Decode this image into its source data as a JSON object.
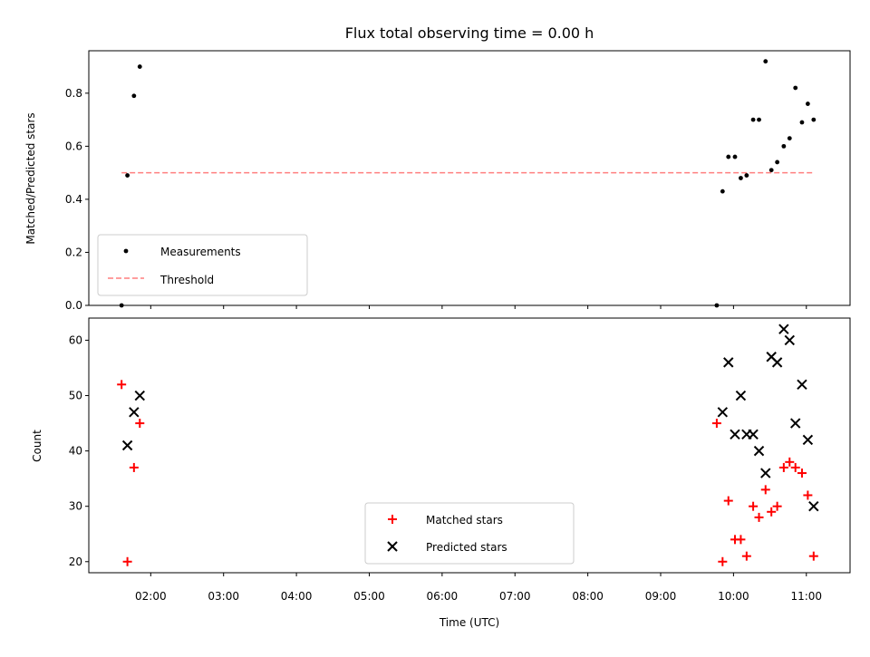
{
  "chart_data": [
    {
      "type": "scatter",
      "title": "Flux total observing time = 0.00 h",
      "xlabel": "",
      "ylabel": "Matched/Predicted stars",
      "ylim": [
        0,
        0.96
      ],
      "xlim": [
        1.15,
        11.6
      ],
      "yticks": [
        "0.0",
        "0.2",
        "0.4",
        "0.6",
        "0.8"
      ],
      "legend_position": "lower-left",
      "series": [
        {
          "name": "Measurements",
          "marker": "dot",
          "color": "#000000",
          "x": [
            1.6,
            1.68,
            1.77,
            1.85,
            9.77,
            9.85,
            9.93,
            10.02,
            10.1,
            10.18,
            10.27,
            10.35,
            10.44,
            10.52,
            10.6,
            10.69,
            10.77,
            10.85,
            10.94,
            11.02,
            11.1
          ],
          "y": [
            0.0,
            0.49,
            0.79,
            0.9,
            0.0,
            0.43,
            0.56,
            0.56,
            0.48,
            0.49,
            0.7,
            0.7,
            0.92,
            0.51,
            0.54,
            0.6,
            0.63,
            0.82,
            0.69,
            0.76,
            0.7
          ]
        },
        {
          "name": "Threshold",
          "line": "dashed",
          "color": "#ff7f7f",
          "x": [
            1.6,
            11.1
          ],
          "y": [
            0.5,
            0.5
          ]
        }
      ]
    },
    {
      "type": "scatter",
      "title": "",
      "xlabel": "Time (UTC)",
      "ylabel": "Count",
      "ylim": [
        18,
        64
      ],
      "xlim": [
        1.15,
        11.6
      ],
      "yticks": [
        "20",
        "30",
        "40",
        "50",
        "60"
      ],
      "xticks": [
        "02:00",
        "03:00",
        "04:00",
        "05:00",
        "06:00",
        "07:00",
        "08:00",
        "09:00",
        "10:00",
        "11:00"
      ],
      "legend_position": "lower-center",
      "series": [
        {
          "name": "Matched stars",
          "marker": "plus",
          "color": "#ff0000",
          "x": [
            1.6,
            1.68,
            1.77,
            1.85,
            9.77,
            9.85,
            9.93,
            10.02,
            10.1,
            10.18,
            10.27,
            10.35,
            10.44,
            10.52,
            10.6,
            10.69,
            10.77,
            10.85,
            10.94,
            11.02,
            11.1
          ],
          "y": [
            52,
            20,
            37,
            45,
            45,
            20,
            31,
            24,
            24,
            21,
            30,
            28,
            33,
            29,
            30,
            37,
            38,
            37,
            36,
            32,
            21
          ]
        },
        {
          "name": "Predicted stars",
          "marker": "x",
          "color": "#000000",
          "x": [
            1.68,
            1.77,
            1.85,
            9.85,
            9.93,
            10.02,
            10.1,
            10.18,
            10.27,
            10.35,
            10.44,
            10.52,
            10.6,
            10.69,
            10.77,
            10.85,
            10.94,
            11.02,
            11.1
          ],
          "y": [
            41,
            47,
            50,
            47,
            56,
            43,
            50,
            43,
            43,
            40,
            36,
            57,
            56,
            62,
            60,
            45,
            52,
            42,
            30
          ]
        }
      ]
    }
  ]
}
